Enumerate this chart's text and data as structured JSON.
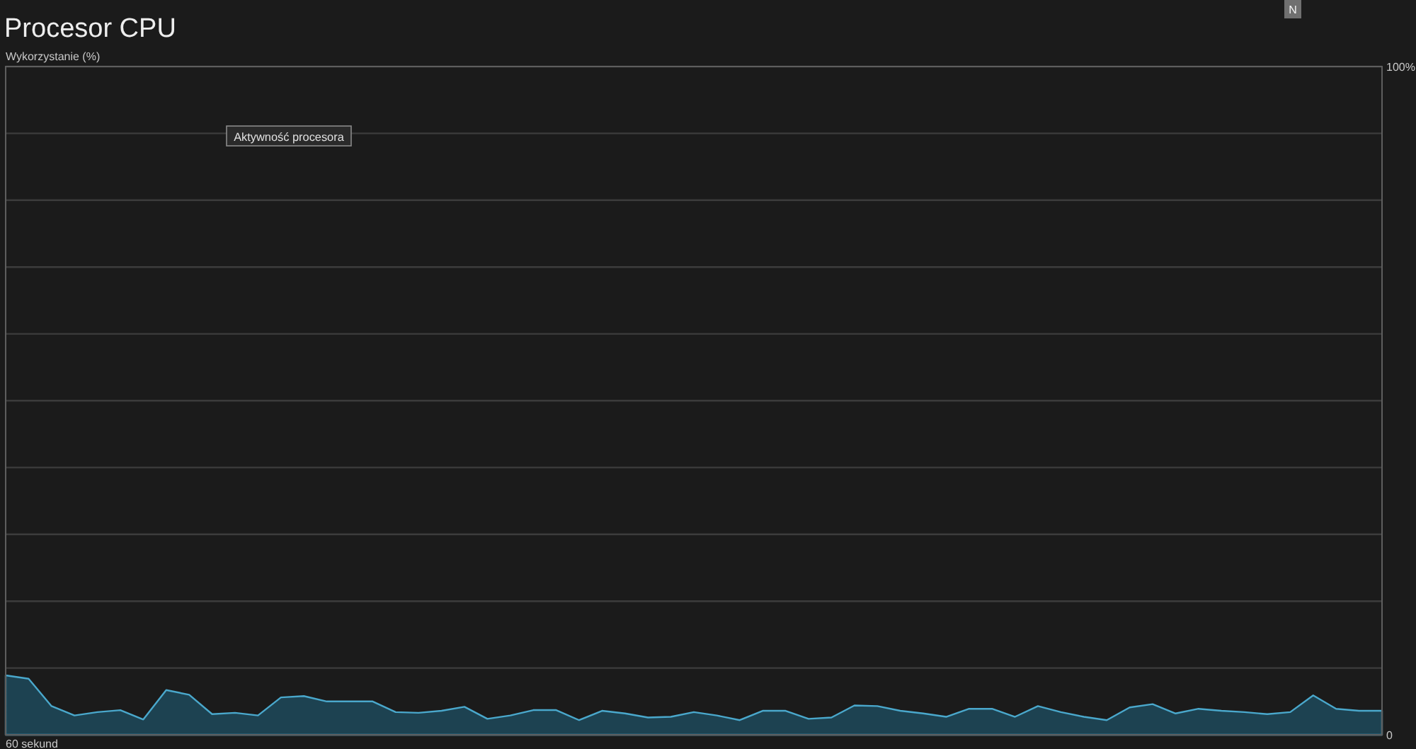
{
  "chart_data": {
    "type": "area",
    "title": "Procesor CPU",
    "ylabel": "Wykorzystanie (%)",
    "xlabel": "60 sekund",
    "annotations": [
      "Aktywność procesora",
      "N"
    ],
    "categories": [
      null,
      null,
      null,
      null,
      null,
      null,
      null,
      null,
      null,
      null,
      null,
      null,
      null,
      null,
      null,
      null,
      null,
      null,
      null,
      null,
      null,
      null,
      null,
      null,
      null,
      null,
      null,
      null,
      null,
      null,
      null,
      null,
      null,
      null,
      null,
      null,
      null,
      null,
      null,
      null,
      null,
      null,
      null,
      null,
      null,
      null,
      null,
      null,
      null,
      null,
      null,
      null,
      null,
      null,
      null,
      null,
      null,
      null,
      null,
      null,
      null
    ],
    "series": [
      {
        "color": "#4aa8cc",
        "values": [
          8.9,
          8.4,
          4.3,
          2.9,
          3.4,
          3.7,
          2.3,
          6.7,
          6.0,
          3.1,
          3.3,
          2.9,
          5.6,
          5.8,
          5.0,
          5.0,
          5.0,
          3.4,
          3.3,
          3.6,
          4.2,
          2.4,
          2.9,
          3.7,
          3.7,
          2.2,
          3.6,
          3.2,
          2.6,
          2.7,
          3.4,
          2.9,
          2.2,
          3.6,
          3.6,
          2.4,
          2.6,
          4.4,
          4.3,
          3.6,
          3.2,
          2.7,
          3.9,
          3.9,
          2.7,
          4.3,
          3.4,
          2.7,
          2.2,
          4.1,
          4.6,
          3.2,
          3.9,
          3.6,
          3.4,
          3.1,
          3.4,
          5.9,
          3.9,
          3.6,
          3.6
        ]
      }
    ],
    "ylim": [
      0,
      100
    ],
    "yticks": [
      {
        "value": 0,
        "label": "0"
      },
      {
        "value": 10,
        "label": null
      },
      {
        "value": 20,
        "label": null
      },
      {
        "value": 30,
        "label": null
      },
      {
        "value": 40,
        "label": null
      },
      {
        "value": 50,
        "label": null
      },
      {
        "value": 60,
        "label": null
      },
      {
        "value": 70,
        "label": null
      },
      {
        "value": 80,
        "label": null
      },
      {
        "value": 90,
        "label": null
      },
      {
        "value": 100,
        "label": "100%"
      }
    ],
    "grid": "y"
  }
}
